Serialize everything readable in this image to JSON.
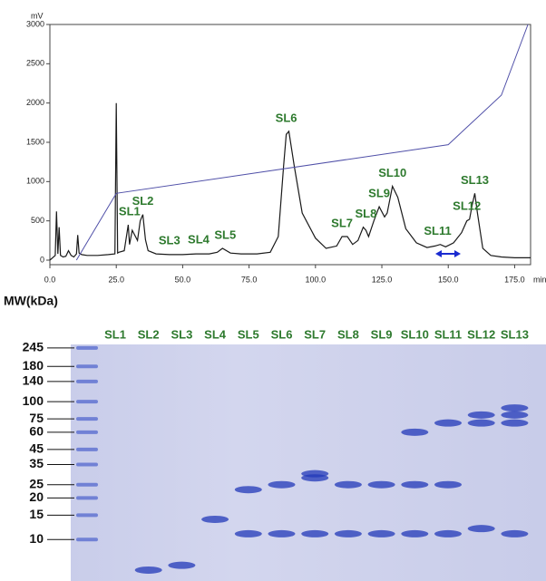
{
  "chart_data": [
    {
      "type": "line",
      "x_unit": "min",
      "y_unit": "mV",
      "xlim": [
        0,
        181
      ],
      "ylim": [
        0,
        3000
      ],
      "xticks": [
        {
          "value": 0,
          "label": "0.0"
        },
        {
          "value": 25,
          "label": "25.0"
        },
        {
          "value": 50,
          "label": "50.0"
        },
        {
          "value": 75,
          "label": "75.0"
        },
        {
          "value": 100,
          "label": "100.0"
        },
        {
          "value": 125,
          "label": "125.0"
        },
        {
          "value": 150,
          "label": "150.0"
        },
        {
          "value": 175,
          "label": "175.0"
        }
      ],
      "yticks": [
        0,
        500,
        1000,
        1500,
        2000,
        2500,
        3000
      ],
      "series": [
        {
          "color": "#1a1a1a",
          "x": [
            0,
            1,
            2,
            2.5,
            3,
            3.5,
            4,
            5,
            6,
            7,
            8,
            9,
            10,
            10.5,
            11,
            12,
            14,
            18,
            22,
            24.5,
            25,
            25.5,
            26,
            28,
            29.5,
            30,
            31,
            33,
            34,
            35,
            36,
            37,
            40,
            45,
            50,
            55,
            60,
            63,
            65,
            68,
            72,
            78,
            83,
            86,
            88,
            89,
            90,
            92,
            95,
            100,
            104,
            108,
            110,
            112,
            114,
            116,
            118,
            119,
            120,
            122,
            124,
            126,
            127,
            129,
            131,
            134,
            138,
            142,
            145,
            147,
            149,
            152,
            155,
            157,
            158,
            159,
            160,
            161,
            163,
            166,
            170,
            175,
            181
          ],
          "y": [
            0,
            30,
            60,
            620,
            80,
            420,
            60,
            40,
            50,
            120,
            60,
            40,
            80,
            320,
            90,
            70,
            60,
            60,
            70,
            80,
            2000,
            90,
            100,
            120,
            450,
            200,
            380,
            250,
            500,
            580,
            260,
            120,
            80,
            70,
            70,
            80,
            80,
            100,
            150,
            90,
            80,
            80,
            100,
            300,
            1200,
            1600,
            1640,
            1200,
            600,
            280,
            150,
            180,
            300,
            300,
            200,
            250,
            420,
            380,
            300,
            500,
            680,
            550,
            600,
            940,
            800,
            400,
            220,
            160,
            180,
            200,
            170,
            220,
            350,
            500,
            520,
            700,
            850,
            600,
            150,
            60,
            40,
            30,
            30
          ]
        },
        {
          "color": "#5050a8",
          "x": [
            10,
            25,
            150,
            170,
            180
          ],
          "y": [
            0,
            850,
            1470,
            2100,
            3000
          ]
        }
      ],
      "annotations": [
        {
          "text": "SL1",
          "x": 30,
          "y": 450
        },
        {
          "text": "SL2",
          "x": 35,
          "y": 580
        },
        {
          "text": "SL3",
          "x": 45,
          "y": 80
        },
        {
          "text": "SL4",
          "x": 56,
          "y": 90
        },
        {
          "text": "SL5",
          "x": 66,
          "y": 150
        },
        {
          "text": "SL6",
          "x": 89,
          "y": 1640
        },
        {
          "text": "SL7",
          "x": 110,
          "y": 300
        },
        {
          "text": "SL8",
          "x": 119,
          "y": 420
        },
        {
          "text": "SL9",
          "x": 124,
          "y": 680
        },
        {
          "text": "SL10",
          "x": 129,
          "y": 940
        },
        {
          "text": "SL11",
          "x": 146,
          "y": 200
        },
        {
          "text": "SL12",
          "x": 157,
          "y": 520
        },
        {
          "text": "SL13",
          "x": 160,
          "y": 850
        }
      ]
    },
    {
      "type": "gel",
      "ylabel": "MW(kDa)",
      "log_scale": true,
      "ylim": [
        5,
        260
      ],
      "yticks": [
        245,
        180,
        140,
        100,
        75,
        60,
        45,
        35,
        25,
        20,
        15,
        10
      ],
      "categories": [
        "SL1",
        "SL2",
        "SL3",
        "SL4",
        "SL5",
        "SL6",
        "SL7",
        "SL8",
        "SL9",
        "SL10",
        "SL11",
        "SL12",
        "SL13"
      ],
      "bands": [
        [],
        [
          6
        ],
        [
          6.5
        ],
        [
          14
        ],
        [
          23,
          11
        ],
        [
          25,
          11
        ],
        [
          30,
          28,
          11
        ],
        [
          25,
          11
        ],
        [
          25,
          11
        ],
        [
          60,
          25,
          11
        ],
        [
          70,
          25,
          11
        ],
        [
          80,
          70,
          12
        ],
        [
          90,
          80,
          70,
          11
        ]
      ]
    }
  ]
}
